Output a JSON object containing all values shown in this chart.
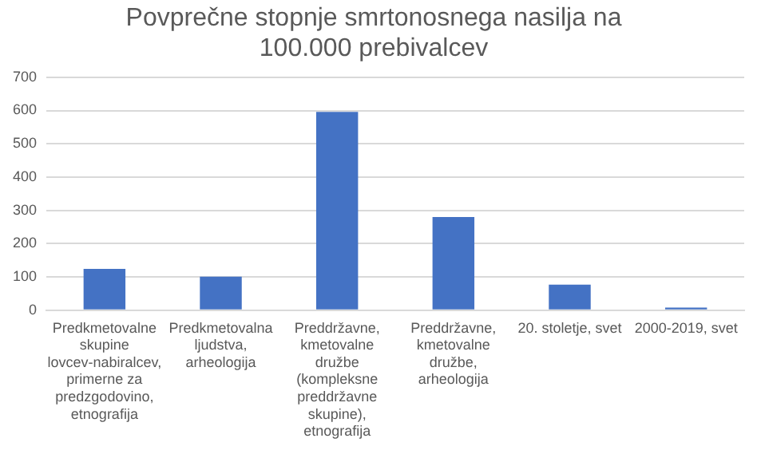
{
  "chart_data": {
    "type": "bar",
    "title": "Povprečne stopnje smrtonosnega nasilja na 100.000 prebivalcev",
    "categories": [
      "Predkmetovalne skupine lovcev-nabiralcev, primerne za predzgodovino, etnografija",
      "Predkmetovalna ljudstva, arheologija",
      "Preddržavne, kmetovalne družbe (kompleksne preddržavne skupine), etnografija",
      "Preddržavne, kmetovalne družbe, arheologija",
      "20. stoletje, svet",
      "2000-2019, svet"
    ],
    "values": [
      124,
      101,
      596,
      280,
      77,
      8
    ],
    "color": "#4472c4",
    "ylim": [
      0,
      700
    ],
    "yticks": [
      0,
      100,
      200,
      300,
      400,
      500,
      600,
      700
    ],
    "grid": "y"
  }
}
